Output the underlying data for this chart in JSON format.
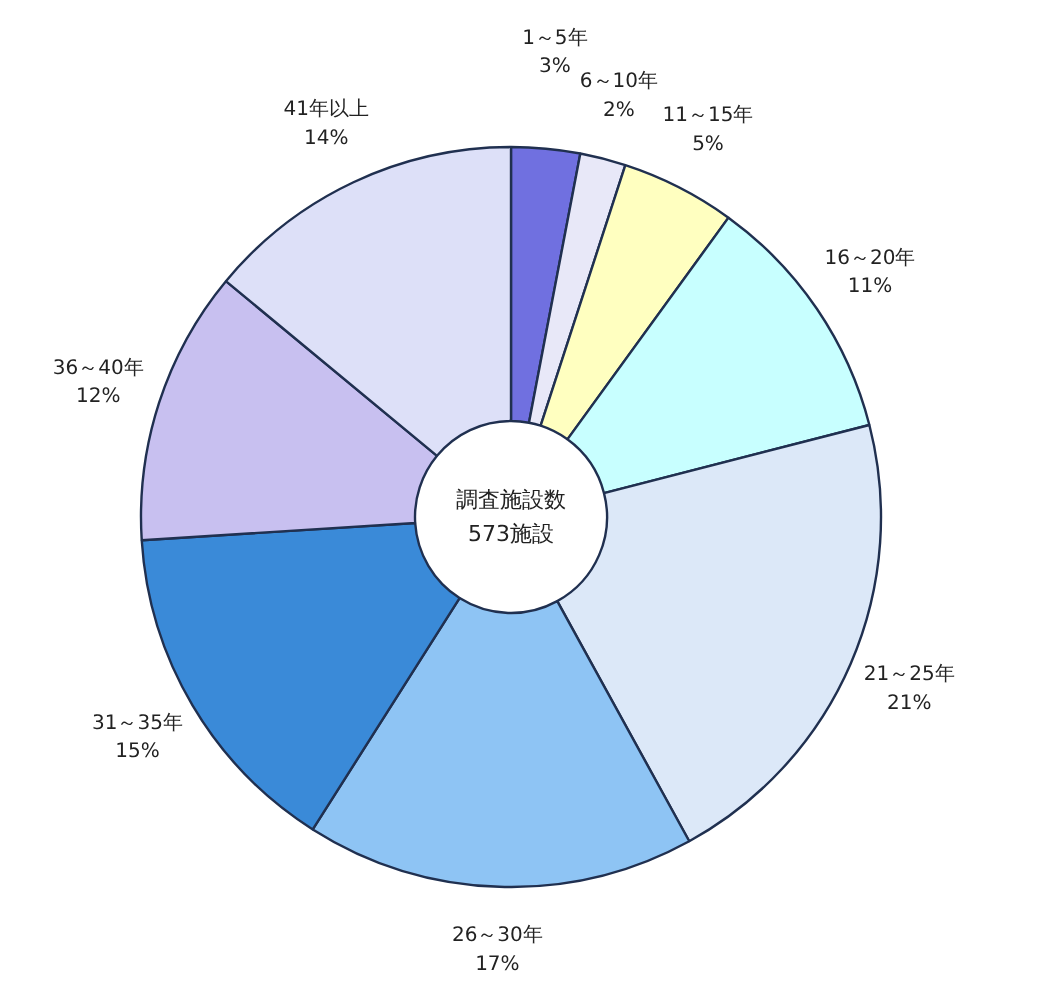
{
  "chart_data": {
    "type": "donut",
    "categories": [
      "1～5年",
      "6～10年",
      "11～15年",
      "16～20年",
      "21～25年",
      "26～30年",
      "31～35年",
      "36～40年",
      "41年以上"
    ],
    "values": [
      3,
      2,
      5,
      11,
      21,
      17,
      15,
      12,
      14
    ],
    "colors": [
      "#7070e0",
      "#e8e8f8",
      "#ffffc0",
      "#c8ffff",
      "#dce8f8",
      "#8ec4f4",
      "#3a8ad8",
      "#c8c0f0",
      "#dde0f8"
    ],
    "value_labels": [
      "3%",
      "2%",
      "5%",
      "11%",
      "21%",
      "17%",
      "15%",
      "12%",
      "14%"
    ],
    "annotations": [
      "調査施設数",
      "573施設"
    ]
  }
}
